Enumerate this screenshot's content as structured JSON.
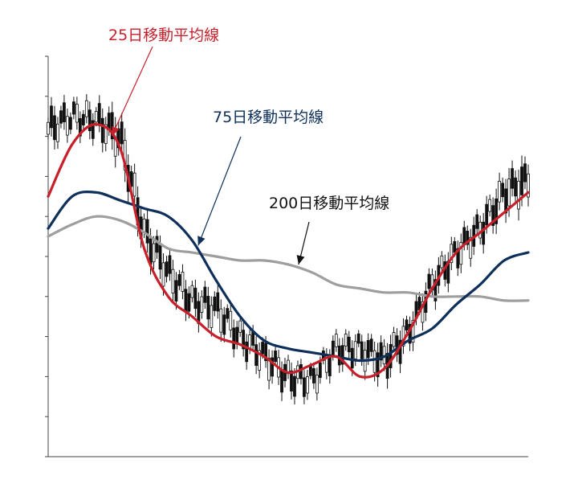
{
  "chart_data": {
    "type": "line",
    "title": "",
    "xlabel": "",
    "ylabel": "",
    "ylim": [
      0,
      100
    ],
    "grid": false,
    "legend": "none",
    "x": [
      0,
      5,
      10,
      15,
      20,
      25,
      30,
      35,
      40,
      45,
      50,
      55,
      60,
      65,
      70,
      75,
      80,
      85,
      90,
      95,
      100
    ],
    "series": [
      {
        "name": "25日移動平均線",
        "color": "#c8202a",
        "values": [
          65,
          78,
          83,
          77,
          52,
          40,
          35,
          30,
          28,
          25,
          21,
          23,
          25,
          20,
          22,
          31,
          42,
          51,
          56,
          61,
          66
        ]
      },
      {
        "name": "75日移動平均線",
        "color": "#0d2f5a",
        "values": [
          57,
          65,
          66,
          64,
          62,
          60,
          54,
          44,
          35,
          29,
          27,
          26,
          25,
          24,
          25,
          29,
          32,
          38,
          43,
          49,
          51
        ]
      },
      {
        "name": "200日移動平均線",
        "color": "#9e9e9e",
        "values": [
          55,
          58,
          60,
          59,
          56,
          52,
          51,
          50,
          49,
          49,
          48,
          46,
          43,
          42,
          41,
          41,
          40,
          40,
          40,
          39,
          39
        ]
      }
    ],
    "price": {
      "color": "#111111",
      "values": [
        82,
        85,
        84,
        80,
        56,
        46,
        39,
        37,
        30,
        25,
        20,
        19,
        27,
        27,
        24,
        31,
        43,
        51,
        57,
        66,
        69
      ],
      "range": [
        12,
        8,
        10,
        14,
        12,
        11,
        10,
        11,
        9,
        10,
        10,
        8,
        9,
        9,
        12,
        10,
        10,
        10,
        10,
        12,
        14
      ]
    },
    "annotations": [
      {
        "text": "25日移動平均線",
        "color": "#c8202a",
        "series": 0,
        "target_x": 13
      },
      {
        "text": "75日移動平均線",
        "color": "#0d2f5a",
        "series": 1,
        "target_x": 31
      },
      {
        "text": "200日移動平均線",
        "color": "#111111",
        "series": 2,
        "target_x": 52
      }
    ]
  }
}
